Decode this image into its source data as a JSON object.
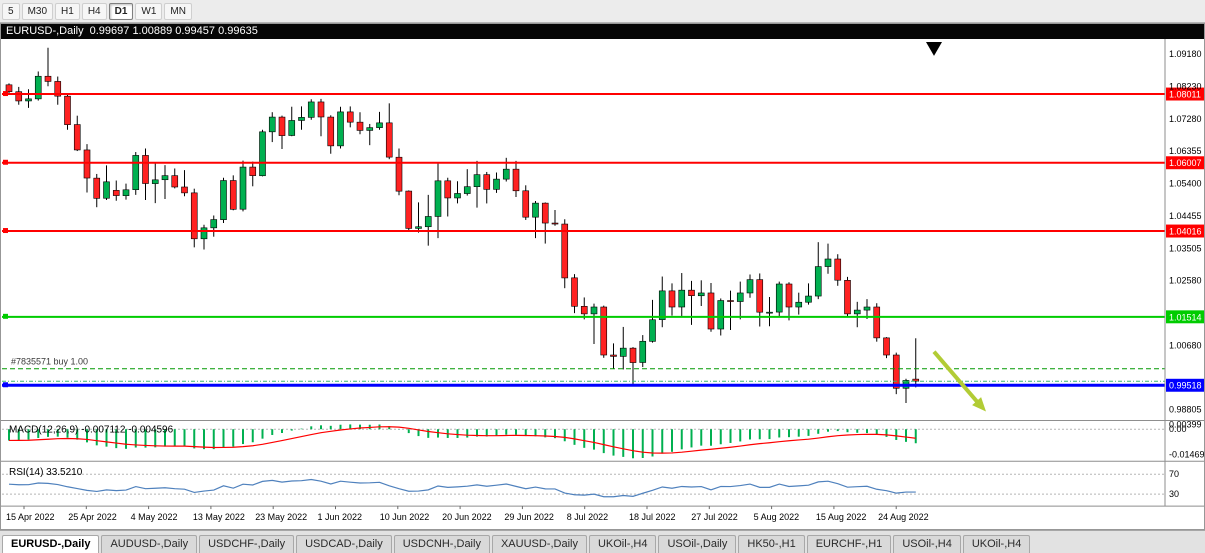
{
  "toolbar": {
    "timeframes": [
      "5",
      "M30",
      "H1",
      "H4",
      "D1",
      "W1",
      "MN"
    ],
    "active": "D1"
  },
  "window": {
    "symbol": "EURUSD-,Daily",
    "ohlc": "0.99697 1.00889 0.99457 0.99635"
  },
  "chart_data": {
    "type": "candlestick",
    "symbol": "EURUSD",
    "timeframe": "Daily",
    "last_ohlc": {
      "open": 0.99697,
      "high": 1.00889,
      "low": 0.99457,
      "close": 0.99635
    },
    "palette": {
      "up": "#00b050",
      "down": "#ff2222",
      "wick": "#000000",
      "macd_hist": "#00b050",
      "macd_signal": "#ff0000",
      "rsi": "#4f81bd",
      "order": "#009900",
      "bid": "#3cb371",
      "arrow": "#b2cc35",
      "red_level": "#ff0000",
      "green_level": "#00cc00",
      "blue_level": "#0000ff"
    },
    "y_ticks": [
      "1.09180",
      "1.08230",
      "1.07280",
      "1.06355",
      "1.05400",
      "1.04455",
      "1.03505",
      "1.02580",
      "1.00680",
      "0.98805"
    ],
    "hlines": [
      {
        "price": 1.08011,
        "label": "1.08011",
        "color": "#ff0000",
        "width": 2
      },
      {
        "price": 1.06007,
        "label": "1.06007",
        "color": "#ff0000",
        "width": 2
      },
      {
        "price": 1.04016,
        "label": "1.04016",
        "color": "#ff0000",
        "width": 2
      },
      {
        "price": 1.01514,
        "label": "1.01514",
        "color": "#00cc00",
        "width": 2
      },
      {
        "price": 0.99518,
        "label": "0.99518",
        "color": "#0000ff",
        "width": 3
      }
    ],
    "order": {
      "label": "#7835571 buy 1.00",
      "price": 1.0
    },
    "bid": 0.99635,
    "date_labels": [
      "15 Apr 2022",
      "25 Apr 2022",
      "4 May 2022",
      "13 May 2022",
      "23 May 2022",
      "1 Jun 2022",
      "10 Jun 2022",
      "20 Jun 2022",
      "29 Jun 2022",
      "8 Jul 2022",
      "18 Jul 2022",
      "27 Jul 2022",
      "5 Aug 2022",
      "15 Aug 2022",
      "24 Aug 2022"
    ],
    "indicators": {
      "macd": {
        "label_full": "MACD(12,26,9) -0.007112 -0.004596",
        "name": "MACD(12,26,9)",
        "value_main": "-0.007112",
        "value_signal": "-0.004596",
        "axis": [
          "0.00399",
          "0.00",
          "-0.01469"
        ]
      },
      "rsi": {
        "label_full": "RSI(14) 33.5210",
        "name": "RSI(14)",
        "value": "33.5210",
        "levels": [
          70,
          30
        ]
      }
    },
    "candles": [
      [
        1.0828,
        1.0832,
        1.08,
        1.0808
      ],
      [
        1.0808,
        1.0822,
        1.077,
        1.0781
      ],
      [
        1.0781,
        1.0815,
        1.0761,
        1.0787
      ],
      [
        1.0787,
        1.0867,
        1.0782,
        1.0853
      ],
      [
        1.0853,
        1.0936,
        1.0824,
        1.0838
      ],
      [
        1.0838,
        1.0852,
        1.077,
        1.0795
      ],
      [
        1.0795,
        1.0804,
        1.0697,
        1.0712
      ],
      [
        1.0712,
        1.0738,
        1.0635,
        1.0638
      ],
      [
        1.0638,
        1.0655,
        1.0514,
        1.0556
      ],
      [
        1.0556,
        1.0568,
        1.0471,
        1.0497
      ],
      [
        1.0497,
        1.0593,
        1.0492,
        1.0545
      ],
      [
        1.052,
        1.0549,
        1.049,
        1.0505
      ],
      [
        1.0505,
        1.054,
        1.0493,
        1.0522
      ],
      [
        1.0522,
        1.0632,
        1.0507,
        1.0622
      ],
      [
        1.0622,
        1.0642,
        1.0492,
        1.054
      ],
      [
        1.054,
        1.0599,
        1.0483,
        1.0551
      ],
      [
        1.0551,
        1.0594,
        1.0495,
        1.0563
      ],
      [
        1.0563,
        1.0584,
        1.0526,
        1.053
      ],
      [
        1.053,
        1.0579,
        1.0503,
        1.0513
      ],
      [
        1.0513,
        1.0525,
        1.0354,
        1.0379
      ],
      [
        1.0379,
        1.042,
        1.0348,
        1.0411
      ],
      [
        1.0411,
        1.0447,
        1.0385,
        1.0435
      ],
      [
        1.0435,
        1.0557,
        1.0425,
        1.0549
      ],
      [
        1.0549,
        1.0564,
        1.0462,
        1.0465
      ],
      [
        1.0465,
        1.0607,
        1.0459,
        1.0588
      ],
      [
        1.0588,
        1.0604,
        1.0532,
        1.0563
      ],
      [
        1.0563,
        1.0697,
        1.0561,
        1.0691
      ],
      [
        1.0691,
        1.0748,
        1.0661,
        1.0734
      ],
      [
        1.0734,
        1.0738,
        1.0641,
        1.068
      ],
      [
        1.068,
        1.0764,
        1.0678,
        1.0724
      ],
      [
        1.0724,
        1.0765,
        1.0697,
        1.0733
      ],
      [
        1.0733,
        1.0786,
        1.0726,
        1.0778
      ],
      [
        1.0778,
        1.0787,
        1.0678,
        1.0734
      ],
      [
        1.0734,
        1.0739,
        1.0627,
        1.065
      ],
      [
        1.065,
        1.0764,
        1.0642,
        1.0749
      ],
      [
        1.0749,
        1.0765,
        1.0704,
        1.0719
      ],
      [
        1.0719,
        1.0748,
        1.0684,
        1.0695
      ],
      [
        1.0695,
        1.0714,
        1.0652,
        1.0703
      ],
      [
        1.0703,
        1.0749,
        1.0697,
        1.0717
      ],
      [
        1.0717,
        1.0774,
        1.0611,
        1.0617
      ],
      [
        1.0617,
        1.0642,
        1.0506,
        1.0518
      ],
      [
        1.0518,
        1.052,
        1.0399,
        1.0409
      ],
      [
        1.0409,
        1.0485,
        1.0397,
        1.0414
      ],
      [
        1.0414,
        1.0507,
        1.0359,
        1.0444
      ],
      [
        1.0444,
        1.0601,
        1.0381,
        1.0548
      ],
      [
        1.0548,
        1.0557,
        1.0444,
        1.0498
      ],
      [
        1.0498,
        1.0547,
        1.0482,
        1.0511
      ],
      [
        1.0511,
        1.0582,
        1.0505,
        1.0531
      ],
      [
        1.0531,
        1.0606,
        1.047,
        1.0566
      ],
      [
        1.0566,
        1.0574,
        1.0482,
        1.0523
      ],
      [
        1.0523,
        1.0572,
        1.0513,
        1.0553
      ],
      [
        1.0553,
        1.0615,
        1.0546,
        1.0582
      ],
      [
        1.0582,
        1.0606,
        1.0501,
        1.0519
      ],
      [
        1.0519,
        1.0535,
        1.0434,
        1.0442
      ],
      [
        1.0442,
        1.0489,
        1.0381,
        1.0483
      ],
      [
        1.0483,
        1.0485,
        1.0365,
        1.0425
      ],
      [
        1.0425,
        1.0463,
        1.0417,
        1.0422
      ],
      [
        1.0422,
        1.0436,
        1.0235,
        1.0265
      ],
      [
        1.0265,
        1.0276,
        1.0162,
        1.0182
      ],
      [
        1.0182,
        1.0208,
        1.0144,
        1.016
      ],
      [
        1.016,
        1.019,
        1.0072,
        1.018
      ],
      [
        1.018,
        1.0184,
        1.0032,
        1.004
      ],
      [
        1.004,
        1.0074,
        1.0,
        1.0036
      ],
      [
        1.0036,
        1.0122,
        0.9998,
        1.006
      ],
      [
        1.006,
        1.0063,
        0.9952,
        1.0018
      ],
      [
        1.0018,
        1.0098,
        1.0005,
        1.008
      ],
      [
        1.008,
        1.0201,
        1.0076,
        1.0143
      ],
      [
        1.0143,
        1.0269,
        1.0121,
        1.0227
      ],
      [
        1.0227,
        1.0249,
        1.0155,
        1.018
      ],
      [
        1.018,
        1.0279,
        1.0151,
        1.0229
      ],
      [
        1.0229,
        1.0256,
        1.0128,
        1.0213
      ],
      [
        1.0213,
        1.0258,
        1.0183,
        1.0221
      ],
      [
        1.0221,
        1.025,
        1.0108,
        1.0116
      ],
      [
        1.0116,
        1.0205,
        1.0097,
        1.0199
      ],
      [
        1.0199,
        1.0228,
        1.0113,
        1.0196
      ],
      [
        1.0196,
        1.0254,
        1.0144,
        1.0221
      ],
      [
        1.0221,
        1.0275,
        1.0207,
        1.026
      ],
      [
        1.026,
        1.0278,
        1.0123,
        1.0165
      ],
      [
        1.0165,
        1.0209,
        1.0124,
        1.0165
      ],
      [
        1.0165,
        1.0254,
        1.0151,
        1.0247
      ],
      [
        1.0247,
        1.0252,
        1.0141,
        1.018
      ],
      [
        1.018,
        1.0222,
        1.0158,
        1.0194
      ],
      [
        1.0194,
        1.0249,
        1.0187,
        1.0212
      ],
      [
        1.0212,
        1.0369,
        1.0203,
        1.0298
      ],
      [
        1.0298,
        1.0365,
        1.0277,
        1.032
      ],
      [
        1.032,
        1.0334,
        1.0242,
        1.0258
      ],
      [
        1.0258,
        1.0268,
        1.0154,
        1.016
      ],
      [
        1.016,
        1.0195,
        1.0121,
        1.0171
      ],
      [
        1.0171,
        1.0203,
        1.0145,
        1.018
      ],
      [
        1.018,
        1.0191,
        1.0079,
        1.009
      ],
      [
        1.009,
        1.0092,
        1.0031,
        1.004
      ],
      [
        1.004,
        1.0047,
        0.9926,
        0.9943
      ],
      [
        0.9943,
        0.9971,
        0.99,
        0.9966
      ],
      [
        0.99697,
        1.00889,
        0.99457,
        0.99635
      ]
    ]
  },
  "tabs": {
    "items": [
      "EURUSD-,Daily",
      "AUDUSD-,Daily",
      "USDCHF-,Daily",
      "USDCAD-,Daily",
      "USDCNH-,Daily",
      "XAUUSD-,Daily",
      "UKOil-,H4",
      "USOil-,Daily",
      "HK50-,H1",
      "EURCHF-,H1",
      "USOil-,H4",
      "UKOil-,H4"
    ],
    "active": "EURUSD-,Daily"
  }
}
